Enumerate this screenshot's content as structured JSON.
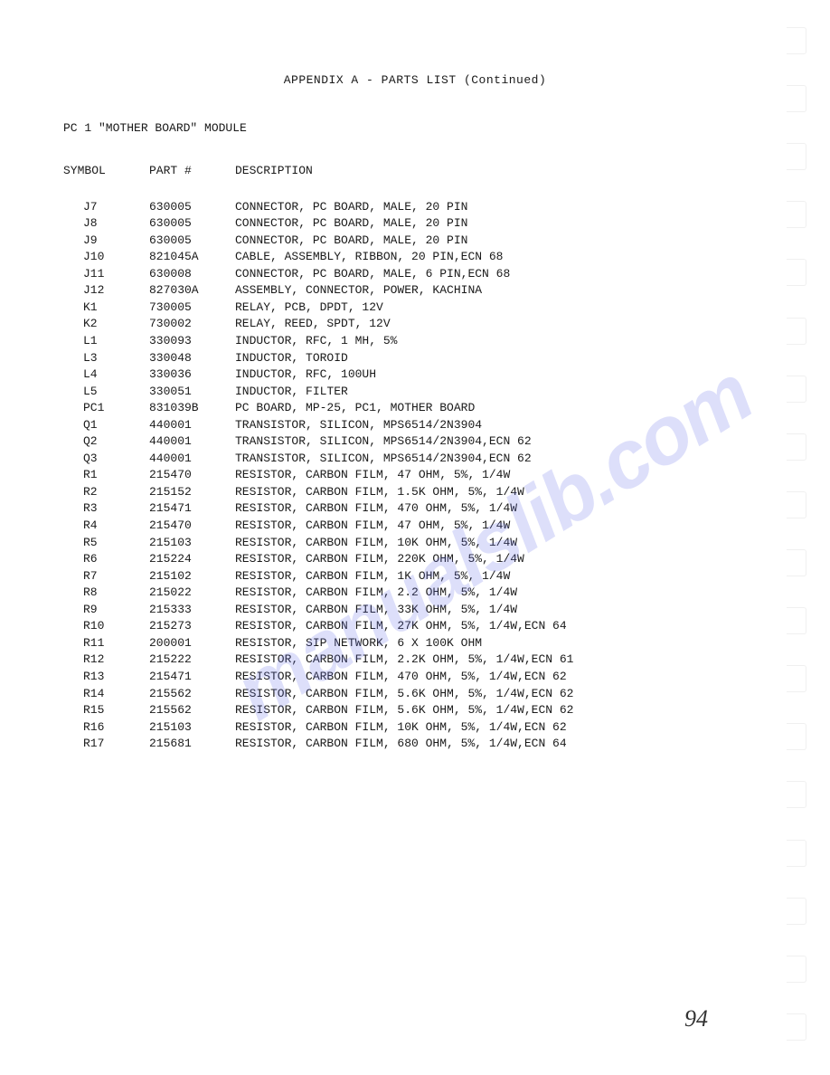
{
  "title": "APPENDIX A - PARTS LIST (Continued)",
  "section": "PC 1 \"MOTHER BOARD\" MODULE",
  "headers": {
    "symbol": "SYMBOL",
    "part": "PART #",
    "desc": "DESCRIPTION"
  },
  "watermark": "manualslib.com",
  "page_number": "94",
  "rows": [
    {
      "symbol": "J7",
      "part": "630005",
      "desc": "CONNECTOR, PC BOARD, MALE, 20 PIN"
    },
    {
      "symbol": "J8",
      "part": "630005",
      "desc": "CONNECTOR, PC BOARD, MALE, 20 PIN"
    },
    {
      "symbol": "J9",
      "part": "630005",
      "desc": "CONNECTOR, PC BOARD, MALE, 20 PIN"
    },
    {
      "symbol": "J10",
      "part": "821045A",
      "desc": "CABLE, ASSEMBLY, RIBBON, 20 PIN,ECN 68"
    },
    {
      "symbol": "J11",
      "part": "630008",
      "desc": "CONNECTOR, PC BOARD, MALE, 6 PIN,ECN 68"
    },
    {
      "symbol": "J12",
      "part": "827030A",
      "desc": "ASSEMBLY, CONNECTOR, POWER, KACHINA"
    },
    {
      "symbol": "K1",
      "part": "730005",
      "desc": "RELAY, PCB, DPDT, 12V"
    },
    {
      "symbol": "K2",
      "part": "730002",
      "desc": "RELAY, REED, SPDT, 12V"
    },
    {
      "symbol": "L1",
      "part": "330093",
      "desc": "INDUCTOR, RFC, 1 MH, 5%"
    },
    {
      "symbol": "L3",
      "part": "330048",
      "desc": "INDUCTOR, TOROID"
    },
    {
      "symbol": "L4",
      "part": "330036",
      "desc": "INDUCTOR, RFC, 100UH"
    },
    {
      "symbol": "L5",
      "part": "330051",
      "desc": "INDUCTOR, FILTER"
    },
    {
      "symbol": "PC1",
      "part": "831039B",
      "desc": "PC BOARD, MP-25, PC1, MOTHER BOARD"
    },
    {
      "symbol": "Q1",
      "part": "440001",
      "desc": "TRANSISTOR, SILICON, MPS6514/2N3904"
    },
    {
      "symbol": "Q2",
      "part": "440001",
      "desc": "TRANSISTOR, SILICON, MPS6514/2N3904,ECN 62"
    },
    {
      "symbol": "Q3",
      "part": "440001",
      "desc": "TRANSISTOR, SILICON, MPS6514/2N3904,ECN 62"
    },
    {
      "symbol": "R1",
      "part": "215470",
      "desc": "RESISTOR, CARBON FILM, 47 OHM, 5%, 1/4W"
    },
    {
      "symbol": "R2",
      "part": "215152",
      "desc": "RESISTOR, CARBON FILM, 1.5K OHM, 5%, 1/4W"
    },
    {
      "symbol": "R3",
      "part": "215471",
      "desc": "RESISTOR, CARBON FILM, 470 OHM, 5%, 1/4W"
    },
    {
      "symbol": "R4",
      "part": "215470",
      "desc": "RESISTOR, CARBON FILM, 47 OHM, 5%, 1/4W"
    },
    {
      "symbol": "R5",
      "part": "215103",
      "desc": "RESISTOR, CARBON FILM, 10K OHM, 5%, 1/4W"
    },
    {
      "symbol": "R6",
      "part": "215224",
      "desc": "RESISTOR, CARBON FILM, 220K OHM, 5%, 1/4W"
    },
    {
      "symbol": "R7",
      "part": "215102",
      "desc": "RESISTOR, CARBON FILM, 1K OHM, 5%, 1/4W"
    },
    {
      "symbol": "R8",
      "part": "215022",
      "desc": "RESISTOR, CARBON FILM, 2.2 OHM, 5%, 1/4W"
    },
    {
      "symbol": "R9",
      "part": "215333",
      "desc": "RESISTOR, CARBON FILM, 33K OHM, 5%, 1/4W"
    },
    {
      "symbol": "R10",
      "part": "215273",
      "desc": "RESISTOR, CARBON FILM, 27K OHM, 5%, 1/4W,ECN 64"
    },
    {
      "symbol": "R11",
      "part": "200001",
      "desc": "RESISTOR, SIP NETWORK, 6 X 100K OHM"
    },
    {
      "symbol": "R12",
      "part": "215222",
      "desc": "RESISTOR, CARBON FILM, 2.2K OHM, 5%, 1/4W,ECN 61"
    },
    {
      "symbol": "R13",
      "part": "215471",
      "desc": "RESISTOR, CARBON FILM, 470 OHM, 5%, 1/4W,ECN 62"
    },
    {
      "symbol": "R14",
      "part": "215562",
      "desc": "RESISTOR, CARBON FILM, 5.6K OHM, 5%, 1/4W,ECN 62"
    },
    {
      "symbol": "R15",
      "part": "215562",
      "desc": "RESISTOR, CARBON FILM, 5.6K OHM, 5%, 1/4W,ECN 62"
    },
    {
      "symbol": "R16",
      "part": "215103",
      "desc": "RESISTOR, CARBON FILM, 10K OHM, 5%, 1/4W,ECN 62"
    },
    {
      "symbol": "R17",
      "part": "215681",
      "desc": "RESISTOR, CARBON FILM, 680 OHM, 5%, 1/4W,ECN 64"
    }
  ]
}
